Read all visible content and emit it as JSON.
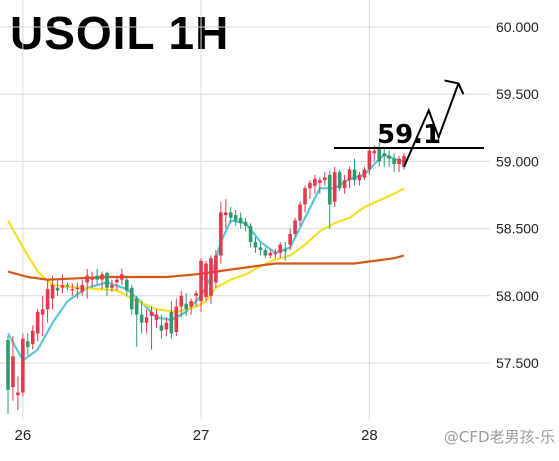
{
  "header": {
    "title": "USOIL 1H"
  },
  "watermark": "@CFD老男孩-乐",
  "colors": {
    "up": "#e23a4c",
    "down": "#2e9a6e",
    "ma_fast": "#5bc8d8",
    "ma_mid": "#f5e02a",
    "ma_slow": "#d2581a",
    "grid": "#d9d9d9"
  },
  "chart_data": {
    "type": "candlestick",
    "title": "USOIL 1H",
    "ylim": [
      57.15,
      60.15
    ],
    "y_ticks": [
      "57.500",
      "58.000",
      "58.500",
      "59.000",
      "59.500",
      "60.000"
    ],
    "x_ticks": [
      "26",
      "27",
      "28"
    ],
    "x_tick_bars": [
      3,
      39,
      73
    ],
    "candles": [
      [
        57.67,
        57.7,
        57.12,
        57.3
      ],
      [
        57.32,
        57.7,
        57.22,
        57.55
      ],
      [
        57.26,
        57.4,
        57.15,
        57.28
      ],
      [
        57.28,
        57.72,
        57.25,
        57.68
      ],
      [
        57.66,
        57.72,
        57.56,
        57.62
      ],
      [
        57.64,
        57.78,
        57.6,
        57.74
      ],
      [
        57.72,
        57.9,
        57.66,
        57.88
      ],
      [
        57.86,
        58.0,
        57.7,
        57.9
      ],
      [
        57.9,
        58.12,
        57.8,
        58.05
      ],
      [
        57.98,
        58.15,
        57.9,
        58.08
      ],
      [
        58.06,
        58.12,
        58.0,
        58.04
      ],
      [
        58.06,
        58.16,
        58.02,
        58.08
      ],
      [
        58.08,
        58.1,
        58.04,
        58.07
      ],
      [
        58.04,
        58.09,
        58.0,
        58.05
      ],
      [
        58.05,
        58.1,
        57.98,
        58.06
      ],
      [
        58.03,
        58.12,
        58.0,
        58.08
      ],
      [
        58.1,
        58.2,
        57.98,
        58.15
      ],
      [
        58.12,
        58.18,
        58.06,
        58.14
      ],
      [
        58.15,
        58.2,
        58.08,
        58.12
      ],
      [
        58.12,
        58.18,
        58.05,
        58.16
      ],
      [
        58.17,
        58.18,
        58.0,
        58.06
      ],
      [
        58.06,
        58.12,
        58.03,
        58.08
      ],
      [
        58.1,
        58.15,
        58.04,
        58.12
      ],
      [
        58.12,
        58.2,
        58.08,
        58.16
      ],
      [
        58.12,
        58.14,
        58.0,
        58.04
      ],
      [
        58.06,
        58.08,
        57.86,
        57.9
      ],
      [
        57.98,
        58.0,
        57.62,
        57.86
      ],
      [
        57.86,
        57.96,
        57.72,
        57.8
      ],
      [
        57.8,
        57.9,
        57.72,
        57.84
      ],
      [
        57.85,
        57.92,
        57.6,
        57.88
      ],
      [
        57.82,
        57.9,
        57.76,
        57.86
      ],
      [
        57.78,
        57.86,
        57.68,
        57.74
      ],
      [
        57.75,
        57.84,
        57.7,
        57.8
      ],
      [
        57.88,
        57.96,
        57.68,
        57.72
      ],
      [
        57.73,
        57.98,
        57.7,
        57.92
      ],
      [
        57.92,
        58.04,
        57.84,
        58.0
      ],
      [
        57.94,
        58.02,
        57.85,
        57.9
      ],
      [
        57.92,
        57.98,
        57.86,
        57.96
      ],
      [
        58.0,
        58.04,
        57.92,
        58.02
      ],
      [
        57.96,
        58.28,
        57.88,
        58.26
      ],
      [
        57.99,
        58.26,
        57.96,
        58.24
      ],
      [
        58.0,
        58.3,
        57.94,
        58.28
      ],
      [
        58.1,
        58.34,
        58.06,
        58.3
      ],
      [
        58.3,
        58.7,
        58.24,
        58.62
      ],
      [
        58.6,
        58.72,
        58.5,
        58.62
      ],
      [
        58.62,
        58.66,
        58.54,
        58.58
      ],
      [
        58.6,
        58.64,
        58.52,
        58.56
      ],
      [
        58.58,
        58.62,
        58.5,
        58.54
      ],
      [
        58.55,
        58.58,
        58.48,
        58.52
      ],
      [
        58.52,
        58.54,
        58.36,
        58.4
      ],
      [
        58.4,
        58.44,
        58.32,
        58.36
      ],
      [
        58.36,
        58.4,
        58.3,
        58.34
      ],
      [
        58.34,
        58.36,
        58.28,
        58.3
      ],
      [
        58.3,
        58.34,
        58.28,
        58.32
      ],
      [
        58.31,
        58.35,
        58.28,
        58.32
      ],
      [
        58.32,
        58.4,
        58.28,
        58.38
      ],
      [
        58.34,
        58.4,
        58.26,
        58.33
      ],
      [
        58.38,
        58.5,
        58.34,
        58.46
      ],
      [
        58.46,
        58.58,
        58.44,
        58.56
      ],
      [
        58.56,
        58.7,
        58.52,
        58.68
      ],
      [
        58.68,
        58.82,
        58.62,
        58.8
      ],
      [
        58.8,
        58.86,
        58.72,
        58.84
      ],
      [
        58.82,
        58.9,
        58.76,
        58.87
      ],
      [
        58.84,
        58.88,
        58.76,
        58.86
      ],
      [
        58.86,
        58.92,
        58.82,
        58.88
      ],
      [
        58.9,
        58.93,
        58.5,
        58.68
      ],
      [
        58.7,
        58.96,
        58.66,
        58.92
      ],
      [
        58.92,
        58.94,
        58.78,
        58.8
      ],
      [
        58.8,
        58.9,
        58.76,
        58.86
      ],
      [
        58.86,
        58.96,
        58.8,
        58.94
      ],
      [
        58.94,
        59.02,
        58.82,
        58.86
      ],
      [
        58.86,
        58.92,
        58.82,
        58.9
      ],
      [
        58.88,
        58.96,
        58.86,
        58.94
      ],
      [
        58.94,
        59.1,
        58.9,
        59.08
      ],
      [
        59.06,
        59.12,
        59.0,
        59.08
      ],
      [
        59.1,
        59.14,
        58.96,
        59.0
      ],
      [
        59.06,
        59.1,
        58.96,
        59.04
      ],
      [
        59.04,
        59.08,
        58.96,
        59.02
      ],
      [
        59.02,
        59.06,
        58.92,
        58.98
      ],
      [
        58.98,
        59.04,
        58.92,
        59.02
      ],
      [
        58.96,
        59.06,
        58.94,
        59.04
      ]
    ],
    "moving_averages": [
      {
        "values": [
          [
            0,
            57.72
          ],
          [
            3,
            57.52
          ],
          [
            6,
            57.6
          ],
          [
            9,
            57.8
          ],
          [
            12,
            57.96
          ],
          [
            16,
            58.06
          ],
          [
            20,
            58.1
          ],
          [
            24,
            58.05
          ],
          [
            27,
            57.95
          ],
          [
            30,
            57.84
          ],
          [
            33,
            57.82
          ],
          [
            36,
            57.88
          ],
          [
            39,
            58.0
          ],
          [
            41,
            58.14
          ],
          [
            43,
            58.4
          ],
          [
            45,
            58.56
          ],
          [
            48,
            58.54
          ],
          [
            51,
            58.4
          ],
          [
            54,
            58.32
          ],
          [
            57,
            58.36
          ],
          [
            60,
            58.58
          ],
          [
            63,
            58.8
          ],
          [
            66,
            58.8
          ],
          [
            69,
            58.87
          ],
          [
            72,
            58.9
          ],
          [
            74,
            58.98
          ],
          [
            76,
            59.05
          ],
          [
            78,
            59.02
          ],
          [
            80,
            59.0
          ]
        ]
      },
      {
        "values": [
          [
            0,
            58.56
          ],
          [
            3,
            58.36
          ],
          [
            6,
            58.18
          ],
          [
            9,
            58.08
          ],
          [
            14,
            58.06
          ],
          [
            18,
            58.05
          ],
          [
            22,
            58.04
          ],
          [
            26,
            57.96
          ],
          [
            30,
            57.9
          ],
          [
            34,
            57.88
          ],
          [
            38,
            57.92
          ],
          [
            40,
            57.96
          ],
          [
            42,
            58.06
          ],
          [
            45,
            58.12
          ],
          [
            48,
            58.16
          ],
          [
            51,
            58.22
          ],
          [
            54,
            58.27
          ],
          [
            57,
            58.3
          ],
          [
            60,
            58.38
          ],
          [
            63,
            58.48
          ],
          [
            66,
            58.54
          ],
          [
            69,
            58.58
          ],
          [
            72,
            58.66
          ],
          [
            75,
            58.71
          ],
          [
            78,
            58.76
          ],
          [
            80,
            58.8
          ]
        ]
      },
      {
        "values": [
          [
            0,
            58.18
          ],
          [
            4,
            58.14
          ],
          [
            8,
            58.12
          ],
          [
            14,
            58.13
          ],
          [
            20,
            58.14
          ],
          [
            26,
            58.14
          ],
          [
            32,
            58.14
          ],
          [
            38,
            58.16
          ],
          [
            42,
            58.18
          ],
          [
            46,
            58.2
          ],
          [
            50,
            58.22
          ],
          [
            54,
            58.24
          ],
          [
            58,
            58.24
          ],
          [
            62,
            58.24
          ],
          [
            66,
            58.24
          ],
          [
            70,
            58.24
          ],
          [
            74,
            58.26
          ],
          [
            78,
            58.28
          ],
          [
            80,
            58.3
          ]
        ]
      }
    ],
    "annotations": [
      {
        "type": "hline",
        "value": 59.1,
        "label": "59.1"
      },
      {
        "type": "arrow",
        "path_values": [
          [
            80,
            58.96
          ],
          [
            85,
            59.38
          ],
          [
            87,
            59.18
          ],
          [
            91,
            59.58
          ],
          [
            92,
            59.5
          ]
        ]
      }
    ]
  }
}
